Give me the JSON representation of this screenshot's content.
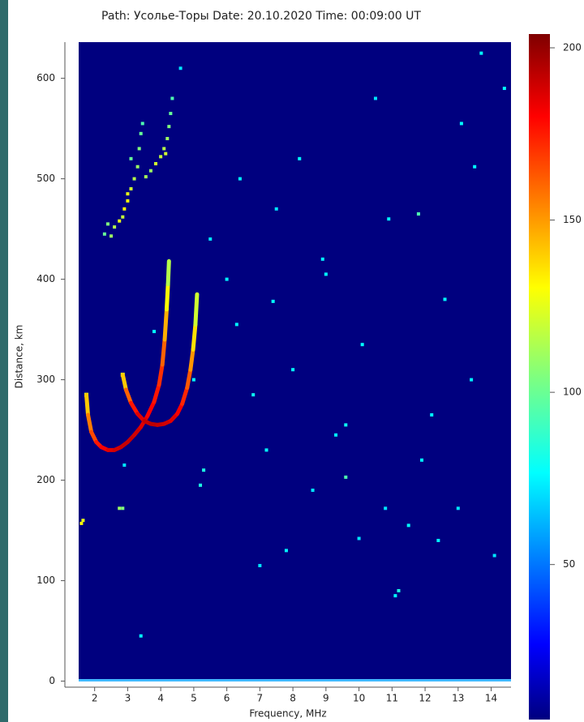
{
  "chart_data": {
    "type": "heatmap",
    "title": "Path: Усолье-Торы Date: 20.10.2020 Time: 00:09:00 UT",
    "x_label": "Frequency, MHz",
    "y_label": "Distance, km",
    "xlim": [
      1.1,
      14.6
    ],
    "ylim": [
      -6,
      636
    ],
    "xticks": [
      2,
      3,
      4,
      5,
      6,
      7,
      8,
      9,
      10,
      11,
      12,
      13,
      14
    ],
    "yticks": [
      0,
      100,
      200,
      300,
      400,
      500,
      600
    ],
    "colorbar": {
      "lim": [
        5,
        204
      ],
      "ticks": [
        50,
        100,
        150,
        200
      ]
    },
    "series": [
      {
        "mode": "line",
        "x": [
          1.75,
          1.8,
          1.9,
          2.05,
          2.2,
          2.4,
          2.6,
          2.8,
          3.0,
          3.2,
          3.4,
          3.6,
          3.8,
          3.95,
          4.05,
          4.12,
          4.18,
          4.22,
          4.25
        ],
        "y": [
          285,
          265,
          248,
          238,
          233,
          230,
          230,
          233,
          238,
          245,
          253,
          264,
          278,
          295,
          315,
          340,
          370,
          395,
          418
        ],
        "values": [
          120,
          140,
          155,
          165,
          175,
          180,
          185,
          188,
          190,
          190,
          188,
          185,
          180,
          175,
          170,
          160,
          145,
          130,
          115
        ]
      },
      {
        "mode": "line",
        "x": [
          2.85,
          2.95,
          3.1,
          3.3,
          3.5,
          3.7,
          3.9,
          4.1,
          4.3,
          4.5,
          4.65,
          4.8,
          4.9,
          4.98,
          5.05,
          5.1
        ],
        "y": [
          305,
          290,
          277,
          266,
          259,
          256,
          255,
          256,
          259,
          266,
          276,
          292,
          310,
          330,
          355,
          385
        ],
        "values": [
          120,
          140,
          160,
          175,
          185,
          190,
          192,
          190,
          188,
          185,
          180,
          172,
          162,
          150,
          135,
          120
        ]
      },
      {
        "mode": "points",
        "x": [
          2.3,
          2.5,
          2.6,
          2.75,
          2.9,
          3.0,
          3.1,
          3.2,
          3.3,
          3.1,
          3.35,
          3.4,
          3.45,
          3.7,
          3.85,
          4.0,
          4.1,
          4.2,
          4.25,
          4.3,
          4.35,
          2.4,
          2.85,
          3.0,
          3.55,
          4.15,
          1.6,
          1.65,
          2.75,
          2.85
        ],
        "y": [
          445,
          443,
          452,
          458,
          470,
          478,
          490,
          500,
          512,
          520,
          530,
          545,
          555,
          508,
          515,
          522,
          530,
          540,
          552,
          565,
          580,
          455,
          462,
          485,
          502,
          525,
          157,
          160,
          172,
          172
        ],
        "values": [
          100,
          110,
          115,
          125,
          130,
          128,
          120,
          115,
          110,
          100,
          105,
          100,
          95,
          110,
          120,
          118,
          115,
          110,
          105,
          100,
          95,
          105,
          118,
          125,
          112,
          120,
          130,
          125,
          110,
          105
        ]
      },
      {
        "mode": "points",
        "x": [
          3.4,
          4.6,
          5.0,
          5.3,
          5.5,
          6.3,
          6.8,
          7.2,
          7.5,
          7.8,
          8.2,
          8.6,
          9.0,
          9.3,
          9.6,
          10.1,
          10.5,
          10.9,
          11.2,
          11.5,
          11.8,
          12.2,
          12.6,
          13.0,
          13.4,
          13.7,
          14.1,
          14.4,
          5.2,
          6.0,
          7.0,
          8.0,
          8.9,
          9.6,
          10.8,
          11.1,
          12.4,
          13.1,
          2.9,
          3.8,
          6.4,
          7.4,
          10.0,
          11.9,
          13.5
        ],
        "y": [
          45,
          610,
          300,
          210,
          440,
          355,
          285,
          230,
          470,
          130,
          520,
          190,
          405,
          245,
          203,
          335,
          580,
          460,
          90,
          155,
          465,
          265,
          380,
          172,
          300,
          625,
          125,
          590,
          195,
          400,
          115,
          310,
          420,
          255,
          172,
          85,
          140,
          555,
          215,
          348,
          500,
          378,
          142,
          220,
          512
        ],
        "values": [
          80,
          75,
          80,
          85,
          75,
          78,
          82,
          80,
          75,
          78,
          80,
          75,
          80,
          78,
          95,
          80,
          75,
          78,
          85,
          80,
          95,
          78,
          80,
          75,
          78,
          80,
          75,
          80,
          85,
          78,
          75,
          80,
          78,
          82,
          75,
          80,
          78,
          80,
          75,
          80,
          78,
          80,
          75,
          78,
          80
        ]
      }
    ]
  }
}
